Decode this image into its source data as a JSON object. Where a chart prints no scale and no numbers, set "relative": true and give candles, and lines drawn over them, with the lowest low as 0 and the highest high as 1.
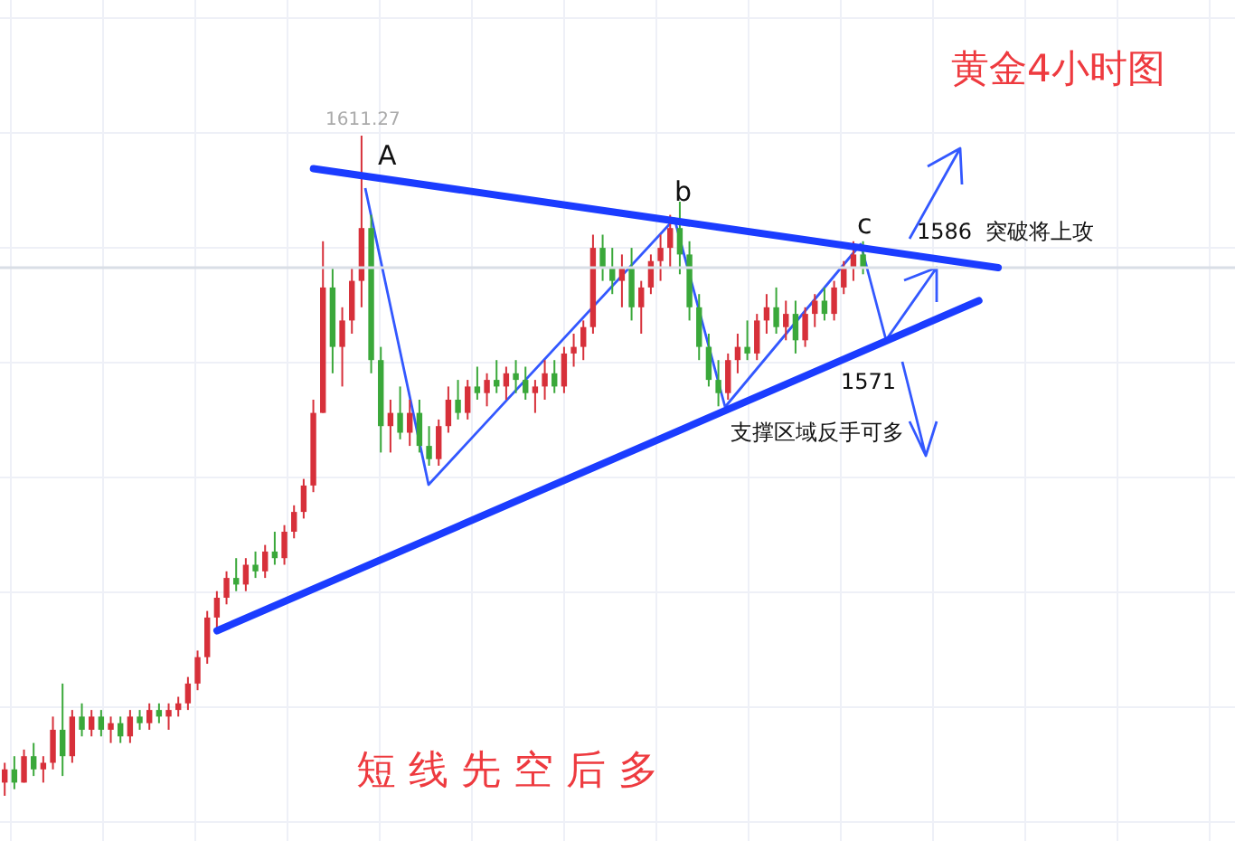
{
  "chart_data": {
    "type": "candlestick",
    "title": "黄金4小时图",
    "relative": true,
    "grid": true,
    "categories": [
      null,
      null,
      null,
      null,
      null,
      null,
      null,
      null,
      null,
      null,
      null,
      null,
      null,
      null,
      null,
      null,
      null,
      null,
      null,
      null,
      null,
      null,
      null,
      null,
      null,
      null,
      null,
      null,
      null,
      null,
      null,
      null,
      null,
      null,
      null,
      null,
      null,
      null,
      null,
      null,
      null,
      null,
      null,
      null,
      null,
      null,
      null,
      null,
      null,
      null,
      null,
      null,
      null,
      null,
      null,
      null,
      null,
      null,
      null,
      null,
      null,
      null,
      null,
      null,
      null,
      null,
      null,
      null,
      null,
      null,
      null,
      null,
      null,
      null,
      null,
      null,
      null,
      null,
      null,
      null,
      null,
      null,
      null,
      null,
      null,
      null,
      null,
      null,
      null,
      null,
      null,
      null,
      null,
      null,
      null,
      null,
      null,
      null,
      null,
      null,
      null,
      null,
      null,
      null
    ],
    "series": [
      {
        "type": "line",
        "color": "#1b3cff",
        "values": [
          null,
          null,
          null,
          null,
          null,
          null,
          null,
          null,
          null,
          null,
          null,
          null,
          null,
          null,
          null,
          null,
          null,
          null,
          null,
          null,
          null,
          null,
          null,
          null,
          null,
          null,
          null,
          null,
          null,
          null,
          null,
          null,
          0.95,
          null,
          null,
          null,
          null,
          null,
          null,
          null,
          null,
          null,
          null,
          null,
          null,
          null,
          null,
          null,
          null,
          null,
          null,
          null,
          null,
          null,
          null,
          null,
          null,
          null,
          null,
          null,
          null,
          null,
          null,
          null,
          null,
          null,
          null,
          null,
          null,
          null,
          null,
          null,
          null,
          null,
          null,
          null,
          null,
          null,
          null,
          null,
          null,
          null,
          null,
          null,
          null,
          null,
          null,
          null,
          null,
          null,
          null,
          null,
          null,
          null,
          null,
          null,
          null,
          null,
          null,
          null,
          null,
          null,
          null,
          0.8
        ]
      },
      {
        "type": "line",
        "color": "#1b3cff",
        "values": [
          null,
          null,
          null,
          null,
          null,
          null,
          null,
          null,
          null,
          null,
          null,
          null,
          null,
          null,
          null,
          null,
          null,
          null,
          null,
          null,
          null,
          null,
          0.25,
          null,
          null,
          null,
          null,
          null,
          null,
          null,
          null,
          null,
          null,
          null,
          null,
          null,
          null,
          null,
          null,
          null,
          null,
          null,
          null,
          null,
          null,
          null,
          null,
          null,
          null,
          null,
          null,
          null,
          null,
          null,
          null,
          null,
          null,
          null,
          null,
          null,
          null,
          null,
          null,
          null,
          null,
          null,
          null,
          null,
          null,
          null,
          null,
          null,
          null,
          null,
          null,
          null,
          null,
          null,
          null,
          null,
          null,
          null,
          null,
          null,
          null,
          null,
          null,
          null,
          null,
          null,
          null,
          null,
          null,
          null,
          null,
          null,
          null,
          null,
          null,
          null,
          null,
          0.75,
          null,
          null
        ]
      }
    ],
    "ohlc": [
      [
        0.02,
        0.05,
        0.0,
        0.04
      ],
      [
        0.04,
        0.06,
        0.01,
        0.02
      ],
      [
        0.02,
        0.07,
        0.02,
        0.06
      ],
      [
        0.06,
        0.08,
        0.03,
        0.04
      ],
      [
        0.04,
        0.06,
        0.02,
        0.05
      ],
      [
        0.05,
        0.12,
        0.04,
        0.1
      ],
      [
        0.1,
        0.17,
        0.03,
        0.06
      ],
      [
        0.06,
        0.13,
        0.05,
        0.12
      ],
      [
        0.12,
        0.14,
        0.09,
        0.1
      ],
      [
        0.1,
        0.13,
        0.09,
        0.12
      ],
      [
        0.12,
        0.13,
        0.09,
        0.1
      ],
      [
        0.1,
        0.12,
        0.08,
        0.11
      ],
      [
        0.11,
        0.12,
        0.08,
        0.09
      ],
      [
        0.09,
        0.13,
        0.08,
        0.12
      ],
      [
        0.12,
        0.13,
        0.1,
        0.11
      ],
      [
        0.11,
        0.14,
        0.1,
        0.13
      ],
      [
        0.13,
        0.14,
        0.11,
        0.12
      ],
      [
        0.12,
        0.14,
        0.1,
        0.13
      ],
      [
        0.13,
        0.15,
        0.12,
        0.14
      ],
      [
        0.14,
        0.18,
        0.13,
        0.17
      ],
      [
        0.17,
        0.22,
        0.16,
        0.21
      ],
      [
        0.21,
        0.28,
        0.2,
        0.27
      ],
      [
        0.27,
        0.31,
        0.25,
        0.3
      ],
      [
        0.3,
        0.34,
        0.29,
        0.33
      ],
      [
        0.33,
        0.36,
        0.31,
        0.32
      ],
      [
        0.32,
        0.36,
        0.31,
        0.35
      ],
      [
        0.35,
        0.37,
        0.33,
        0.34
      ],
      [
        0.34,
        0.38,
        0.33,
        0.37
      ],
      [
        0.37,
        0.4,
        0.35,
        0.36
      ],
      [
        0.36,
        0.41,
        0.35,
        0.4
      ],
      [
        0.4,
        0.44,
        0.39,
        0.43
      ],
      [
        0.43,
        0.48,
        0.42,
        0.47
      ],
      [
        0.47,
        0.6,
        0.46,
        0.58
      ],
      [
        0.58,
        0.84,
        0.58,
        0.77
      ],
      [
        0.77,
        0.8,
        0.64,
        0.68
      ],
      [
        0.68,
        0.74,
        0.62,
        0.72
      ],
      [
        0.72,
        0.8,
        0.7,
        0.78
      ],
      [
        0.78,
        1.0,
        0.74,
        0.86
      ],
      [
        0.86,
        0.88,
        0.64,
        0.66
      ],
      [
        0.66,
        0.68,
        0.52,
        0.56
      ],
      [
        0.56,
        0.6,
        0.52,
        0.58
      ],
      [
        0.58,
        0.62,
        0.54,
        0.55
      ],
      [
        0.55,
        0.6,
        0.53,
        0.58
      ],
      [
        0.58,
        0.6,
        0.52,
        0.53
      ],
      [
        0.53,
        0.56,
        0.5,
        0.51
      ],
      [
        0.51,
        0.57,
        0.5,
        0.56
      ],
      [
        0.56,
        0.62,
        0.55,
        0.6
      ],
      [
        0.6,
        0.63,
        0.57,
        0.58
      ],
      [
        0.58,
        0.63,
        0.57,
        0.62
      ],
      [
        0.62,
        0.65,
        0.6,
        0.61
      ],
      [
        0.61,
        0.64,
        0.59,
        0.63
      ],
      [
        0.63,
        0.66,
        0.61,
        0.62
      ],
      [
        0.62,
        0.65,
        0.6,
        0.64
      ],
      [
        0.64,
        0.66,
        0.61,
        0.63
      ],
      [
        0.63,
        0.65,
        0.6,
        0.61
      ],
      [
        0.61,
        0.63,
        0.58,
        0.62
      ],
      [
        0.62,
        0.66,
        0.6,
        0.64
      ],
      [
        0.64,
        0.66,
        0.61,
        0.62
      ],
      [
        0.62,
        0.68,
        0.61,
        0.67
      ],
      [
        0.67,
        0.7,
        0.65,
        0.68
      ],
      [
        0.68,
        0.72,
        0.66,
        0.71
      ],
      [
        0.71,
        0.85,
        0.7,
        0.83
      ],
      [
        0.83,
        0.85,
        0.78,
        0.8
      ],
      [
        0.8,
        0.83,
        0.76,
        0.78
      ],
      [
        0.78,
        0.82,
        0.74,
        0.8
      ],
      [
        0.8,
        0.83,
        0.72,
        0.74
      ],
      [
        0.74,
        0.78,
        0.7,
        0.77
      ],
      [
        0.77,
        0.82,
        0.76,
        0.81
      ],
      [
        0.81,
        0.85,
        0.78,
        0.83
      ],
      [
        0.83,
        0.88,
        0.8,
        0.86
      ],
      [
        0.86,
        0.9,
        0.79,
        0.82
      ],
      [
        0.82,
        0.84,
        0.72,
        0.74
      ],
      [
        0.74,
        0.76,
        0.66,
        0.68
      ],
      [
        0.68,
        0.7,
        0.62,
        0.63
      ],
      [
        0.63,
        0.66,
        0.59,
        0.61
      ],
      [
        0.61,
        0.67,
        0.6,
        0.66
      ],
      [
        0.66,
        0.7,
        0.64,
        0.68
      ],
      [
        0.68,
        0.72,
        0.66,
        0.67
      ],
      [
        0.67,
        0.73,
        0.66,
        0.72
      ],
      [
        0.72,
        0.76,
        0.7,
        0.74
      ],
      [
        0.74,
        0.77,
        0.7,
        0.71
      ],
      [
        0.71,
        0.75,
        0.69,
        0.73
      ],
      [
        0.73,
        0.75,
        0.67,
        0.69
      ],
      [
        0.69,
        0.74,
        0.68,
        0.73
      ],
      [
        0.73,
        0.76,
        0.71,
        0.75
      ],
      [
        0.75,
        0.77,
        0.72,
        0.73
      ],
      [
        0.73,
        0.78,
        0.72,
        0.77
      ],
      [
        0.77,
        0.81,
        0.76,
        0.8
      ],
      [
        0.8,
        0.84,
        0.78,
        0.82
      ],
      [
        0.82,
        0.84,
        0.79,
        0.8
      ],
      null,
      null,
      null,
      null,
      null,
      null,
      null,
      null,
      null,
      null,
      null,
      null,
      null,
      null
    ],
    "colors": [
      "#d7303a",
      "#3aa83a",
      "#d7303a",
      "#3aa83a",
      "#d7303a",
      "#d7303a",
      "#3aa83a",
      "#d7303a",
      "#3aa83a",
      "#d7303a",
      "#3aa83a",
      "#d7303a",
      "#3aa83a",
      "#d7303a",
      "#3aa83a",
      "#d7303a",
      "#3aa83a",
      "#d7303a",
      "#d7303a",
      "#d7303a",
      "#d7303a",
      "#d7303a",
      "#d7303a",
      "#d7303a",
      "#3aa83a",
      "#d7303a",
      "#3aa83a",
      "#d7303a",
      "#3aa83a",
      "#d7303a",
      "#d7303a",
      "#d7303a",
      "#d7303a",
      "#d7303a",
      "#3aa83a",
      "#d7303a",
      "#d7303a",
      "#d7303a",
      "#3aa83a",
      "#3aa83a",
      "#d7303a",
      "#3aa83a",
      "#d7303a",
      "#3aa83a",
      "#3aa83a",
      "#d7303a",
      "#d7303a",
      "#3aa83a",
      "#d7303a",
      "#3aa83a",
      "#d7303a",
      "#3aa83a",
      "#d7303a",
      "#3aa83a",
      "#3aa83a",
      "#d7303a",
      "#d7303a",
      "#3aa83a",
      "#d7303a",
      "#d7303a",
      "#d7303a",
      "#d7303a",
      "#3aa83a",
      "#3aa83a",
      "#d7303a",
      "#3aa83a",
      "#d7303a",
      "#d7303a",
      "#d7303a",
      "#d7303a",
      "#3aa83a",
      "#3aa83a",
      "#3aa83a",
      "#3aa83a",
      "#3aa83a",
      "#d7303a",
      "#d7303a",
      "#3aa83a",
      "#d7303a",
      "#d7303a",
      "#3aa83a",
      "#d7303a",
      "#3aa83a",
      "#d7303a",
      "#d7303a",
      "#3aa83a",
      "#d7303a",
      "#d7303a",
      "#d7303a",
      "#3aa83a",
      null,
      null,
      null,
      null,
      null,
      null,
      null,
      null,
      null,
      null,
      null,
      null,
      null,
      null
    ],
    "ref_lines": [
      {
        "axis": "y",
        "value": 0.8,
        "color": "#d9dee6"
      }
    ],
    "annotations": [
      "1611.27",
      "A",
      "b",
      "c",
      "1586  突破将上攻",
      "1571",
      "支撑区域反手可多",
      "短 线 先 空 后 多"
    ]
  }
}
